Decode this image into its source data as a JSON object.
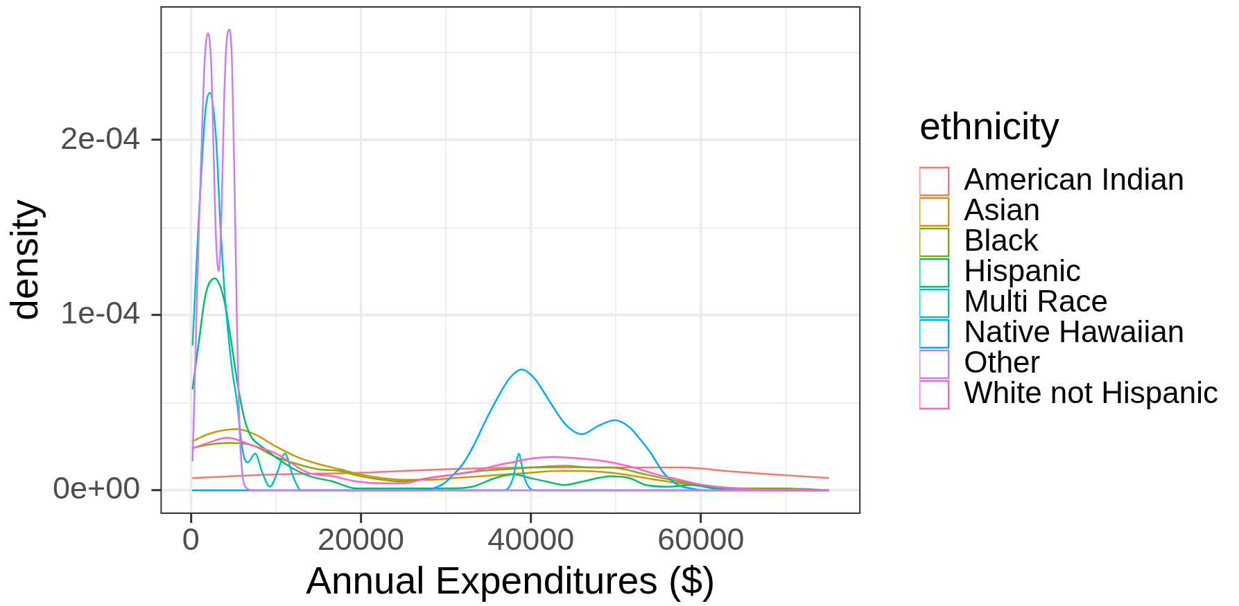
{
  "chart_data": {
    "type": "line",
    "xlabel": "Annual Expenditures ($)",
    "ylabel": "density",
    "legend_title": "ethnicity",
    "xlim": [
      -3500,
      78700
    ],
    "ylim": [
      -1.31e-05,
      0.000276
    ],
    "xticks": [
      0,
      {
        "value": 10000,
        "label": null
      },
      20000,
      {
        "value": 30000,
        "label": null
      },
      40000,
      {
        "value": 50000,
        "label": null
      },
      60000,
      {
        "value": 70000,
        "label": null
      }
    ],
    "yticks": [
      {
        "value": 0,
        "label": "0e+00"
      },
      {
        "value": 5e-05,
        "label": null
      },
      {
        "value": 0.0001,
        "label": "1e-04"
      },
      {
        "value": 0.00015,
        "label": null
      },
      {
        "value": 0.0002,
        "label": "2e-04"
      },
      {
        "value": 0.00025,
        "label": null
      }
    ],
    "grid": true,
    "legend": "right",
    "marker": "none",
    "series": [
      {
        "name": "American Indian",
        "color": "#f8766d",
        "x": [
          200,
          10000,
          20000,
          30000,
          40000,
          47000,
          53000,
          58000,
          63000,
          68400,
          75000
        ],
        "values": [
          7e-06,
          9e-06,
          1e-05,
          1.2e-05,
          1.3e-05,
          1.3e-05,
          1.3e-05,
          1.3e-05,
          1.1e-05,
          9e-06,
          7e-06
        ]
      },
      {
        "name": "Asian",
        "color": "#cd9600",
        "x": [
          200,
          2000,
          3500,
          5400,
          7500,
          10000,
          12500,
          15000,
          17500,
          20000,
          22500,
          25000,
          28000,
          31000,
          34000,
          37000,
          40000,
          43000,
          46000,
          49400,
          53500,
          57500,
          61600
        ],
        "values": [
          2.8e-05,
          3.2e-05,
          3.4e-05,
          3.5e-05,
          3.2e-05,
          2.5e-05,
          1.9e-05,
          1.5e-05,
          1.2e-05,
          9e-06,
          7e-06,
          6e-06,
          6e-06,
          7e-06,
          8e-06,
          9e-06,
          1e-05,
          1.1e-05,
          1.1e-05,
          1e-05,
          7e-06,
          4e-06,
          2e-06
        ]
      },
      {
        "name": "Black",
        "color": "#7cae00",
        "x": [
          200,
          2000,
          4500,
          7000,
          10000,
          12500,
          15000,
          17500,
          20000,
          22500,
          25000,
          28000,
          31000,
          34000,
          37000,
          40000,
          44000,
          47000,
          49400,
          53500,
          57500,
          61600,
          65700,
          70000,
          75000
        ],
        "values": [
          2.4e-05,
          2.6e-05,
          2.7e-05,
          2.6e-05,
          1.9e-05,
          1.5e-05,
          1.2e-05,
          1.1e-05,
          8e-06,
          6e-06,
          5e-06,
          7e-06,
          9e-06,
          1.1e-05,
          1.2e-05,
          1.3e-05,
          1.4e-05,
          1.3e-05,
          1.3e-05,
          9e-06,
          5e-06,
          2e-06,
          1e-06,
          1e-06,
          0
        ]
      },
      {
        "name": "Hispanic",
        "color": "#00be67",
        "x": [
          200,
          970,
          1740,
          2830,
          3490,
          4070,
          4650,
          5230,
          5810,
          6400,
          7170,
          8330,
          9100,
          11800,
          14000,
          16700,
          19500,
          25000,
          30300,
          33100,
          35800,
          38000,
          39900,
          41800,
          44000,
          46100,
          49400,
          51600,
          53500,
          56200,
          58900,
          61600,
          65700
        ],
        "values": [
          5.8e-05,
          8.6e-05,
          0.000112,
          0.000121,
          0.000116,
          0.000105,
          8.8e-05,
          6.9e-05,
          5.2e-05,
          3.9e-05,
          3e-05,
          2.5e-05,
          2.2e-05,
          1.3e-05,
          8e-06,
          5e-06,
          1e-06,
          1e-06,
          1e-06,
          2e-06,
          7e-06,
          9e-06,
          7e-06,
          5e-06,
          3e-06,
          5e-06,
          8e-06,
          7e-06,
          3e-06,
          2e-06,
          3e-06,
          1e-06,
          0
        ]
      },
      {
        "name": "Multi Race",
        "color": "#00bfc4",
        "x": [
          200,
          580,
          970,
          1360,
          1740,
          2250,
          2640,
          2990,
          3490,
          3880,
          4190,
          4850,
          5430,
          6010,
          6400,
          6710,
          7560,
          8410,
          9300,
          10160,
          11050,
          12020,
          12990,
          36600,
          37300,
          37900,
          38250,
          38580,
          38900,
          39260,
          39900,
          40550,
          75000
        ],
        "values": [
          8.3e-05,
          0.000121,
          0.000159,
          0.000192,
          0.000218,
          0.000227,
          0.000218,
          0.000199,
          0.00015,
          0.000119,
          0.0001,
          6.9e-05,
          5e-05,
          2.5e-05,
          1.7e-05,
          1.6e-05,
          2.1e-05,
          1e-05,
          2e-06,
          1e-05,
          2.1e-05,
          8e-06,
          0,
          0,
          1e-06,
          7e-06,
          1.5e-05,
          2.1e-05,
          1.5e-05,
          7e-06,
          1e-06,
          0,
          0
        ]
      },
      {
        "name": "Native Hawaiian",
        "color": "#00a9ff",
        "x": [
          200,
          26000,
          28400,
          29800,
          30900,
          32000,
          33100,
          34700,
          36100,
          37500,
          38900,
          40400,
          42300,
          44000,
          46000,
          48000,
          49900,
          51600,
          52700,
          54000,
          55600,
          57300,
          58900,
          60300,
          75000
        ],
        "values": [
          0,
          0,
          1e-06,
          4e-06,
          9e-06,
          1.5e-05,
          2.4e-05,
          4e-05,
          5.3e-05,
          6.4e-05,
          6.9e-05,
          6.4e-05,
          5e-05,
          3.8e-05,
          3.2e-05,
          3.7e-05,
          4e-05,
          3.6e-05,
          3e-05,
          2.2e-05,
          1e-05,
          3e-06,
          1e-06,
          0,
          0
        ]
      },
      {
        "name": "Other",
        "color": "#c77cff",
        "x": [
          200,
          430,
          660,
          970,
          1280,
          1630,
          2020,
          2400,
          2710,
          2990,
          3300,
          3610,
          3920,
          4260,
          4570,
          4850,
          5160,
          5430,
          5700,
          6010,
          6400,
          7360,
          75000
        ],
        "values": [
          1.7e-05,
          5.6e-05,
          0.0001,
          0.000153,
          0.0002,
          0.000246,
          0.000261,
          0.000242,
          0.000186,
          0.00014,
          0.000125,
          0.000159,
          0.000224,
          0.000259,
          0.000263,
          0.000242,
          0.000168,
          9.3e-05,
          3.8e-05,
          1.2e-05,
          2e-06,
          0,
          0
        ]
      },
      {
        "name": "White not Hispanic",
        "color": "#ff61cc",
        "x": [
          200,
          2000,
          4300,
          7000,
          10000,
          13800,
          16700,
          19500,
          22700,
          25000,
          28000,
          31100,
          33500,
          35800,
          37800,
          39900,
          42600,
          46100,
          49400,
          52100,
          54800,
          57500,
          60300,
          64300,
          70000,
          75000
        ],
        "values": [
          2.4e-05,
          2.7e-05,
          3e-05,
          2.6e-05,
          2.1e-05,
          1e-05,
          8e-06,
          5e-06,
          4e-06,
          4e-06,
          7e-06,
          9e-06,
          1.1e-05,
          1.4e-05,
          1.6e-05,
          1.8e-05,
          1.9e-05,
          1.8e-05,
          1.6e-05,
          1.3e-05,
          9e-06,
          6e-06,
          3e-06,
          1e-06,
          0,
          0
        ]
      }
    ]
  }
}
